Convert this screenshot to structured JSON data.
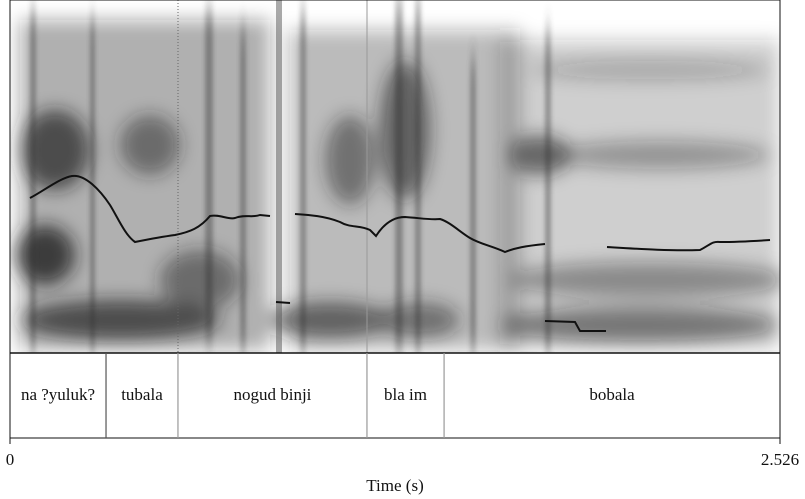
{
  "chart_data": {
    "type": "textgrid",
    "xlabel": "Time (s)",
    "xlim": [
      0,
      2.526
    ],
    "xticks": [
      0,
      2.526
    ],
    "intervals": [
      {
        "label": "na ?yuluk?",
        "start": 0,
        "end": 0.315
      },
      {
        "label": "tubala",
        "start": 0.315,
        "end": 0.551
      },
      {
        "label": "nogud binji",
        "start": 0.551,
        "end": 1.171
      },
      {
        "label": "bla im",
        "start": 1.171,
        "end": 1.424
      },
      {
        "label": "bobala",
        "start": 1.424,
        "end": 2.526
      }
    ]
  }
}
